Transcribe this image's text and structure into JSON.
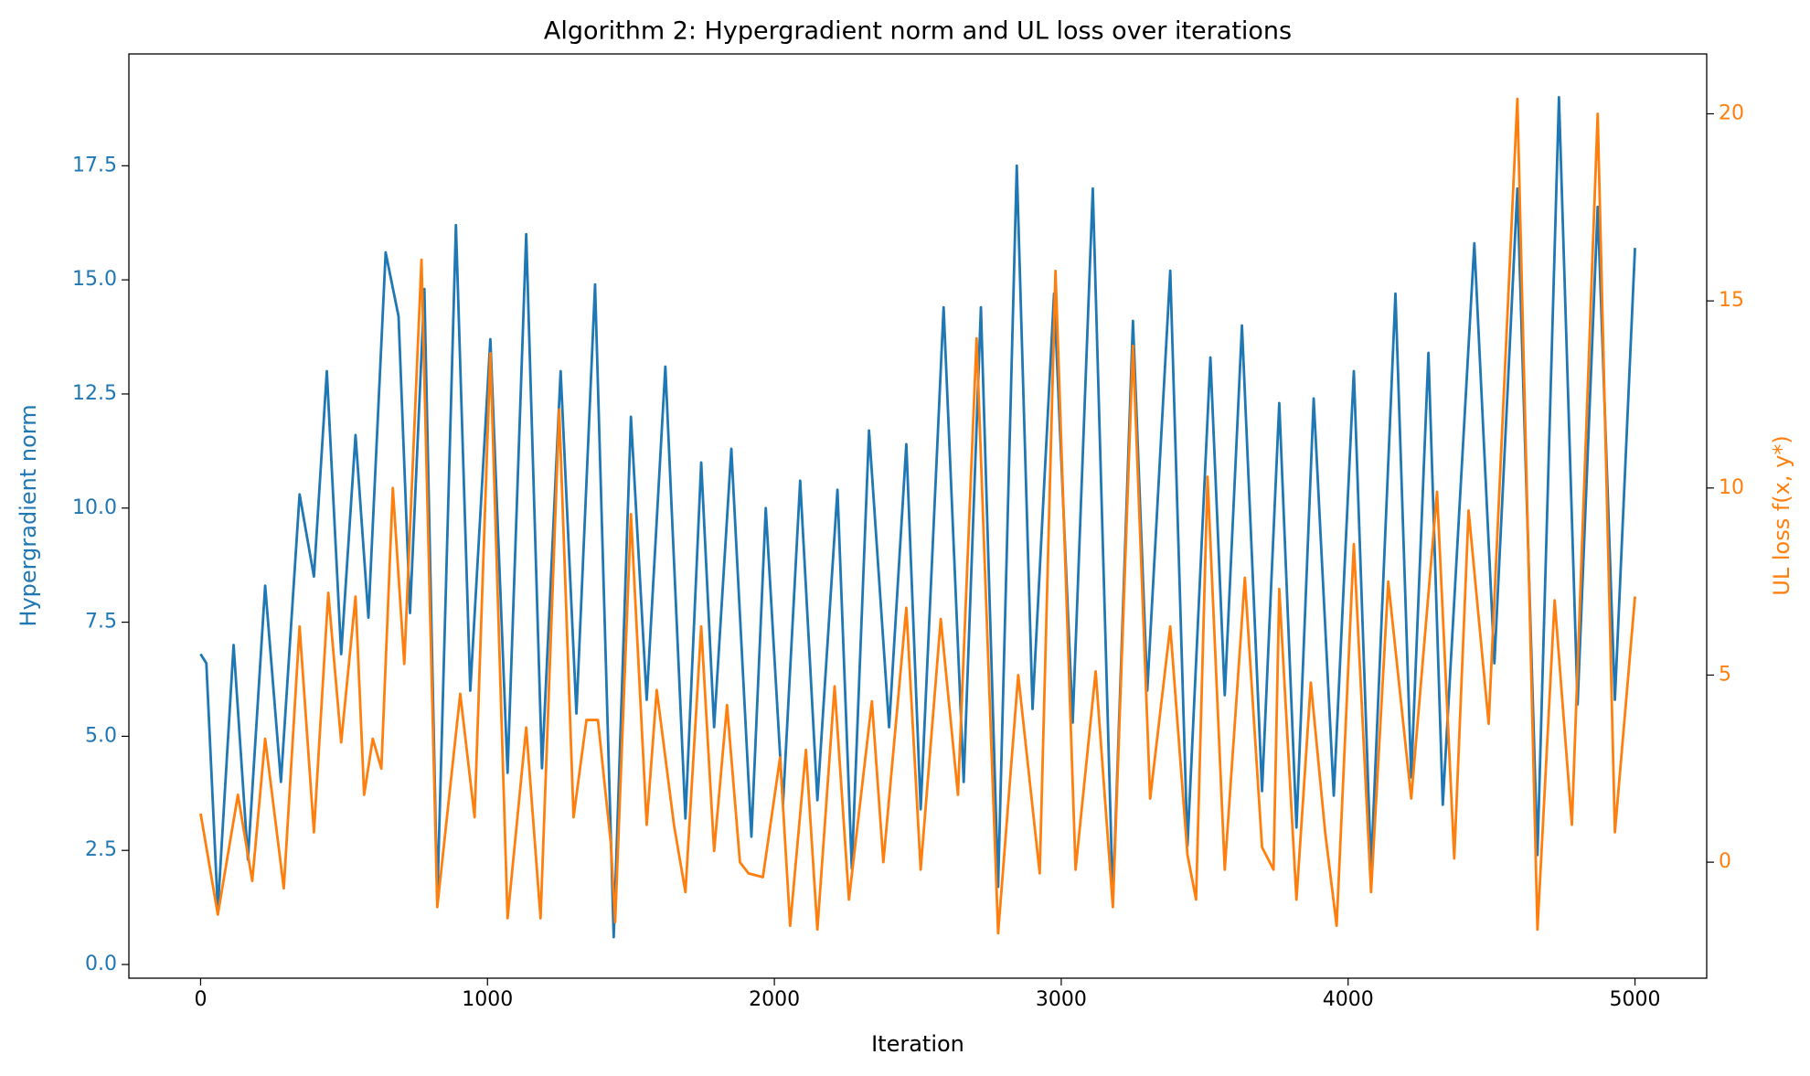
{
  "chart_data": {
    "type": "line",
    "title": "Algorithm 2: Hypergradient norm and UL loss over iterations",
    "xlabel": "Iteration",
    "ylabel": "Hypergradient norm",
    "y2label": "UL loss f(x, y*)",
    "xlim": [
      -250,
      5250
    ],
    "xticks": [
      0,
      1000,
      2000,
      3000,
      4000,
      5000
    ],
    "ylim": [
      -0.3,
      19.95
    ],
    "yticks": [
      {
        "value": 0,
        "label": "0.0"
      },
      2.5,
      {
        "value": 5,
        "label": "5.0"
      },
      7.5,
      {
        "value": 10,
        "label": "10.0"
      },
      12.5,
      {
        "value": 15,
        "label": "15.0"
      },
      17.5
    ],
    "y2lim": [
      -3.1,
      21.6
    ],
    "y2ticks": [
      0,
      5,
      10,
      15,
      20
    ],
    "ycolor": "#1f77b4",
    "y2color": "#ff7f0e",
    "series": [
      {
        "color": "#1f77b4",
        "axis": "y",
        "x": [
          0,
          20,
          60,
          115,
          165,
          225,
          280,
          345,
          395,
          440,
          490,
          540,
          585,
          645,
          690,
          730,
          780,
          825,
          890,
          940,
          1010,
          1070,
          1135,
          1190,
          1255,
          1310,
          1375,
          1440,
          1500,
          1555,
          1620,
          1690,
          1745,
          1790,
          1850,
          1920,
          1970,
          2030,
          2090,
          2150,
          2220,
          2270,
          2330,
          2400,
          2460,
          2510,
          2590,
          2660,
          2720,
          2780,
          2845,
          2900,
          2975,
          3040,
          3110,
          3180,
          3250,
          3300,
          3380,
          3440,
          3520,
          3570,
          3630,
          3700,
          3760,
          3820,
          3880,
          3950,
          4020,
          4080,
          4165,
          4220,
          4280,
          4330,
          4440,
          4510,
          4590,
          4660,
          4735,
          4800,
          4870,
          4930,
          5000
        ],
        "values": [
          6.8,
          6.6,
          1.2,
          7.0,
          2.3,
          8.3,
          4.0,
          10.3,
          8.5,
          13.0,
          6.8,
          11.6,
          7.6,
          15.6,
          14.2,
          7.7,
          14.8,
          1.4,
          16.2,
          6.0,
          13.7,
          4.2,
          16.0,
          4.3,
          13.0,
          5.5,
          14.9,
          0.6,
          12.0,
          5.8,
          13.1,
          3.2,
          11.0,
          5.2,
          11.3,
          2.8,
          10.0,
          3.5,
          10.6,
          3.6,
          10.4,
          2.1,
          11.7,
          5.2,
          11.4,
          3.4,
          14.4,
          4.0,
          14.4,
          1.7,
          17.5,
          5.6,
          14.7,
          5.3,
          17.0,
          1.4,
          14.1,
          6.0,
          15.2,
          2.6,
          13.3,
          5.9,
          14.0,
          3.8,
          12.3,
          3.0,
          12.4,
          3.7,
          13.0,
          2.1,
          14.7,
          4.1,
          13.4,
          3.5,
          15.8,
          6.6,
          17.0,
          2.4,
          19.0,
          5.7,
          16.6,
          5.8,
          15.7
        ]
      },
      {
        "color": "#ff7f0e",
        "axis": "y2",
        "x": [
          0,
          60,
          130,
          180,
          225,
          290,
          345,
          395,
          445,
          490,
          540,
          570,
          600,
          630,
          670,
          710,
          770,
          825,
          905,
          955,
          1010,
          1070,
          1135,
          1185,
          1250,
          1300,
          1345,
          1385,
          1430,
          1445,
          1500,
          1555,
          1590,
          1650,
          1690,
          1745,
          1790,
          1835,
          1880,
          1910,
          1960,
          2020,
          2055,
          2110,
          2150,
          2210,
          2260,
          2340,
          2380,
          2460,
          2510,
          2580,
          2640,
          2705,
          2780,
          2850,
          2925,
          2980,
          3050,
          3120,
          3180,
          3250,
          3310,
          3380,
          3440,
          3470,
          3510,
          3570,
          3640,
          3700,
          3740,
          3760,
          3820,
          3870,
          3920,
          3960,
          4020,
          4080,
          4140,
          4220,
          4310,
          4370,
          4420,
          4490,
          4590,
          4660,
          4720,
          4780,
          4870,
          4930,
          5000
        ],
        "values": [
          1.3,
          -1.4,
          1.8,
          -0.5,
          3.3,
          -0.7,
          6.3,
          0.8,
          7.2,
          3.2,
          7.1,
          1.8,
          3.3,
          2.5,
          10.0,
          5.3,
          16.1,
          -1.2,
          4.5,
          1.2,
          13.6,
          -1.5,
          3.6,
          -1.5,
          12.1,
          1.2,
          3.8,
          3.8,
          0.5,
          -1.6,
          9.3,
          1.0,
          4.6,
          1.0,
          -0.8,
          6.3,
          0.3,
          4.2,
          0.0,
          -0.3,
          -0.4,
          2.8,
          -1.7,
          3.0,
          -1.8,
          4.7,
          -1.0,
          4.3,
          0.0,
          6.8,
          -0.2,
          6.5,
          1.8,
          14.0,
          -1.9,
          5.0,
          -0.3,
          15.8,
          -0.2,
          5.1,
          -1.2,
          13.8,
          1.7,
          6.3,
          0.2,
          -1.0,
          10.3,
          -0.2,
          7.6,
          0.4,
          -0.2,
          7.3,
          -1.0,
          4.8,
          0.8,
          -1.7,
          8.5,
          -0.8,
          7.5,
          1.7,
          9.9,
          0.1,
          9.4,
          3.7,
          20.4,
          -1.8,
          7.0,
          1.0,
          20.0,
          0.8,
          7.1
        ]
      }
    ]
  }
}
